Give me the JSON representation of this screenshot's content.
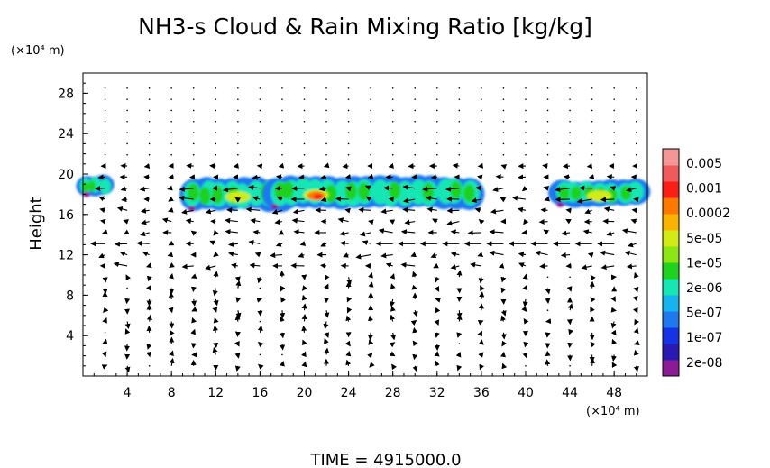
{
  "title": "NH3-s Cloud & Rain Mixing Ratio [kg/kg]",
  "time_label": "TIME  =  4915000.0",
  "y_unit": "(×10⁴ m)",
  "x_unit": "(×10⁴ m)",
  "colorbar": {
    "labels": [
      "0.005",
      "0.001",
      "0.0002",
      "5e-05",
      "1e-05",
      "2e-06",
      "5e-07",
      "1e-07",
      "2e-08"
    ],
    "colors": [
      "#8c1a96",
      "#2a1ab4",
      "#1432e6",
      "#1e78f0",
      "#14b4f0",
      "#14e6b4",
      "#1ed21e",
      "#8ce614",
      "#d2eb14",
      "#fab400",
      "#ff7800",
      "#fa1e14",
      "#f05a5a",
      "#f59696"
    ]
  },
  "chart_data": {
    "type": "heatmap",
    "title": "NH3-s Cloud & Rain Mixing Ratio [kg/kg]",
    "ylabel": "Height",
    "xlim": [
      0,
      51
    ],
    "ylim": [
      0,
      30
    ],
    "xticks": [
      "4",
      "8",
      "12",
      "16",
      "20",
      "24",
      "28",
      "32",
      "36",
      "40",
      "44",
      "48"
    ],
    "yticks": [
      "4",
      "8",
      "12",
      "16",
      "20",
      "24",
      "28"
    ],
    "cloud_patches": [
      {
        "x_range": [
          0,
          2.2
        ],
        "y_range": [
          17.8,
          19.8
        ],
        "peak": "1e-05"
      },
      {
        "x_range": [
          9.5,
          18.5
        ],
        "y_range": [
          16.4,
          19.6
        ],
        "peak": "5e-05"
      },
      {
        "x_range": [
          17,
          35.5
        ],
        "y_range": [
          16.6,
          19.8
        ],
        "peak": "0.0002"
      },
      {
        "x_range": [
          42.8,
          50.5
        ],
        "y_range": [
          16.8,
          19.4
        ],
        "peak": "5e-05"
      }
    ],
    "wind_vectors": "quiver field, strongest flow near 12-17 (x10^4 m) height"
  }
}
